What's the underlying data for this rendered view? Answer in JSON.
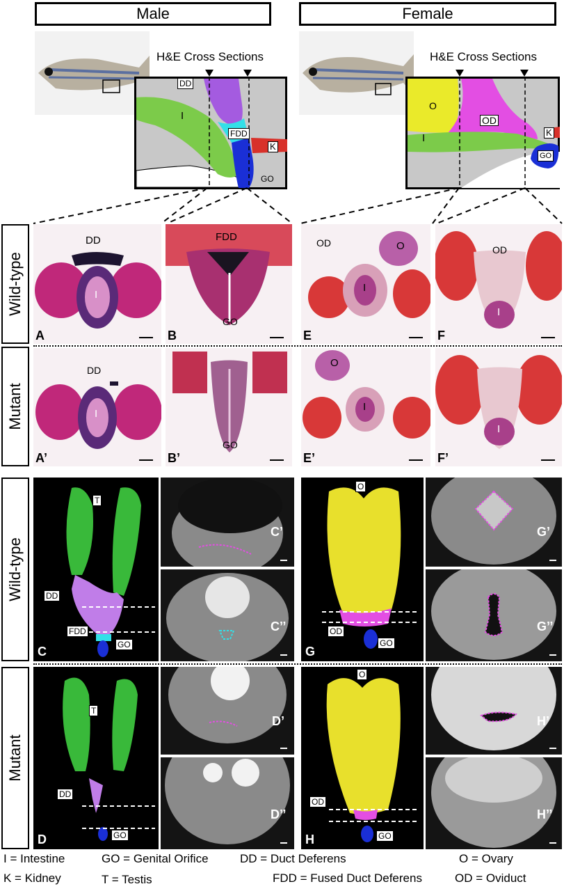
{
  "headers": {
    "male": "Male",
    "female": "Female"
  },
  "section_titles": {
    "male": "H&E Cross Sections",
    "female": "H&E Cross Sections"
  },
  "rows": {
    "he_wildtype": "Wild-type",
    "he_mutant": "Mutant",
    "ct_wildtype": "Wild-type",
    "ct_mutant": "Mutant"
  },
  "diagram_labels": {
    "male": {
      "dd": "DD",
      "i": "I",
      "fdd": "FDD",
      "k": "K",
      "go": "GO"
    },
    "female": {
      "o": "O",
      "od": "OD",
      "i": "I",
      "k": "K",
      "go": "GO"
    }
  },
  "panels": {
    "A": {
      "label": "A",
      "tags": [
        "DD",
        "I"
      ]
    },
    "B": {
      "label": "B",
      "tags": [
        "FDD",
        "GO"
      ]
    },
    "E": {
      "label": "E",
      "tags": [
        "OD",
        "O",
        "I"
      ]
    },
    "F": {
      "label": "F",
      "tags": [
        "OD",
        "I"
      ]
    },
    "A2": {
      "label": "A’",
      "tags": [
        "DD",
        "I"
      ]
    },
    "B2": {
      "label": "B’",
      "tags": [
        "GO"
      ]
    },
    "E2": {
      "label": "E’",
      "tags": [
        "O",
        "I"
      ]
    },
    "F2": {
      "label": "F’",
      "tags": [
        "I"
      ]
    },
    "C": {
      "label": "C",
      "tags": [
        "T",
        "DD",
        "FDD",
        "GO"
      ]
    },
    "C1": {
      "label": "C’"
    },
    "C2": {
      "label": "C’’"
    },
    "G": {
      "label": "G",
      "tags": [
        "O",
        "OD",
        "GO"
      ]
    },
    "G1": {
      "label": "G’"
    },
    "G2": {
      "label": "G’’"
    },
    "D": {
      "label": "D",
      "tags": [
        "T",
        "DD",
        "GO"
      ]
    },
    "D1": {
      "label": "D’"
    },
    "D2": {
      "label": "D’’"
    },
    "H": {
      "label": "H",
      "tags": [
        "O",
        "OD",
        "GO"
      ]
    },
    "H1": {
      "label": "H’"
    },
    "H2": {
      "label": "H’’"
    }
  },
  "legend": {
    "i": "I = Intestine",
    "go": "GO = Genital Orifice",
    "dd": "DD = Duct Deferens",
    "o": "O = Ovary",
    "k": "K = Kidney",
    "t": "T = Testis",
    "fdd": "FDD = Fused Duct Deferens",
    "od": "OD = Oviduct"
  },
  "colors": {
    "intestine": "#7ccb4a",
    "duct_deferens": "#a45be0",
    "fused_duct": "#33e0e8",
    "kidney": "#d8312a",
    "genital_orifice": "#1a2fd6",
    "ovary": "#eaea2a",
    "oviduct": "#e34ee3",
    "testis": "#39b93a"
  }
}
